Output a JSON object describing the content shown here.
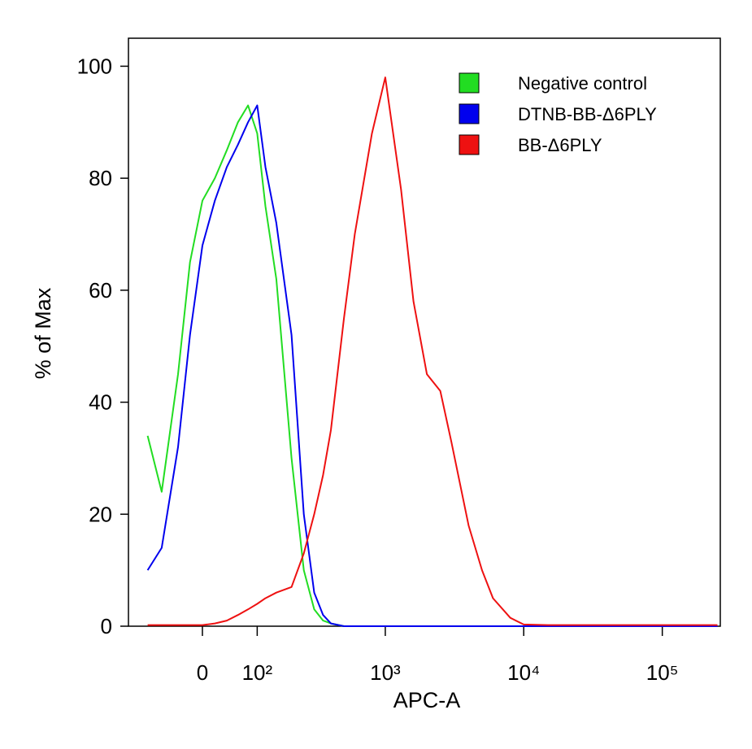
{
  "chart_data": {
    "type": "line",
    "y_label": "% of Max",
    "x_label": "APC-A",
    "x_scale": "biexponential",
    "x": [
      -100,
      -70,
      -40,
      -20,
      0,
      20,
      40,
      60,
      80,
      100,
      120,
      150,
      200,
      250,
      300,
      350,
      400,
      500,
      600,
      800,
      1000,
      1300,
      1600,
      2000,
      2500,
      3000,
      4000,
      5000,
      6000,
      8000,
      10000,
      15000,
      30000,
      100000,
      250000
    ],
    "series": [
      {
        "name": "Negative control",
        "color": "#22dd22",
        "values": [
          34,
          24,
          45,
          65,
          76,
          80,
          85,
          90,
          93,
          88,
          75,
          62,
          30,
          10,
          3,
          1,
          0.5,
          0,
          0,
          0,
          0,
          0,
          0,
          0,
          0,
          0,
          0,
          0,
          0,
          0,
          0,
          0,
          0,
          0,
          0
        ]
      },
      {
        "name": "DTNB-BB-Δ6PLY",
        "color": "#0000ee",
        "values": [
          10,
          14,
          32,
          52,
          68,
          76,
          82,
          86,
          90,
          93,
          82,
          72,
          52,
          20,
          6,
          2,
          0.5,
          0,
          0,
          0,
          0,
          0,
          0,
          0,
          0,
          0,
          0,
          0,
          0,
          0,
          0,
          0,
          0,
          0,
          0
        ]
      },
      {
        "name": "BB-Δ6PLY",
        "color": "#ee1111",
        "values": [
          0.2,
          0.2,
          0.2,
          0.2,
          0.2,
          0.5,
          1,
          2,
          3,
          4,
          5,
          6,
          7,
          13,
          20,
          27,
          35,
          55,
          70,
          88,
          98,
          78,
          58,
          45,
          42,
          33,
          18,
          10,
          5,
          1.5,
          0.3,
          0.2,
          0.2,
          0.2,
          0.2
        ]
      }
    ],
    "xlim": [
      -150,
      262144
    ],
    "xticks": [
      0,
      {
        "value": 100,
        "label": "10²"
      },
      {
        "value": 1000,
        "label": "10³"
      },
      {
        "value": 10000,
        "label": "10⁴"
      },
      {
        "value": 100000,
        "label": "10⁵"
      }
    ],
    "ylim": [
      0,
      105
    ],
    "yticks": [
      0,
      20,
      40,
      60,
      80,
      100
    ],
    "legend": "top-right"
  }
}
